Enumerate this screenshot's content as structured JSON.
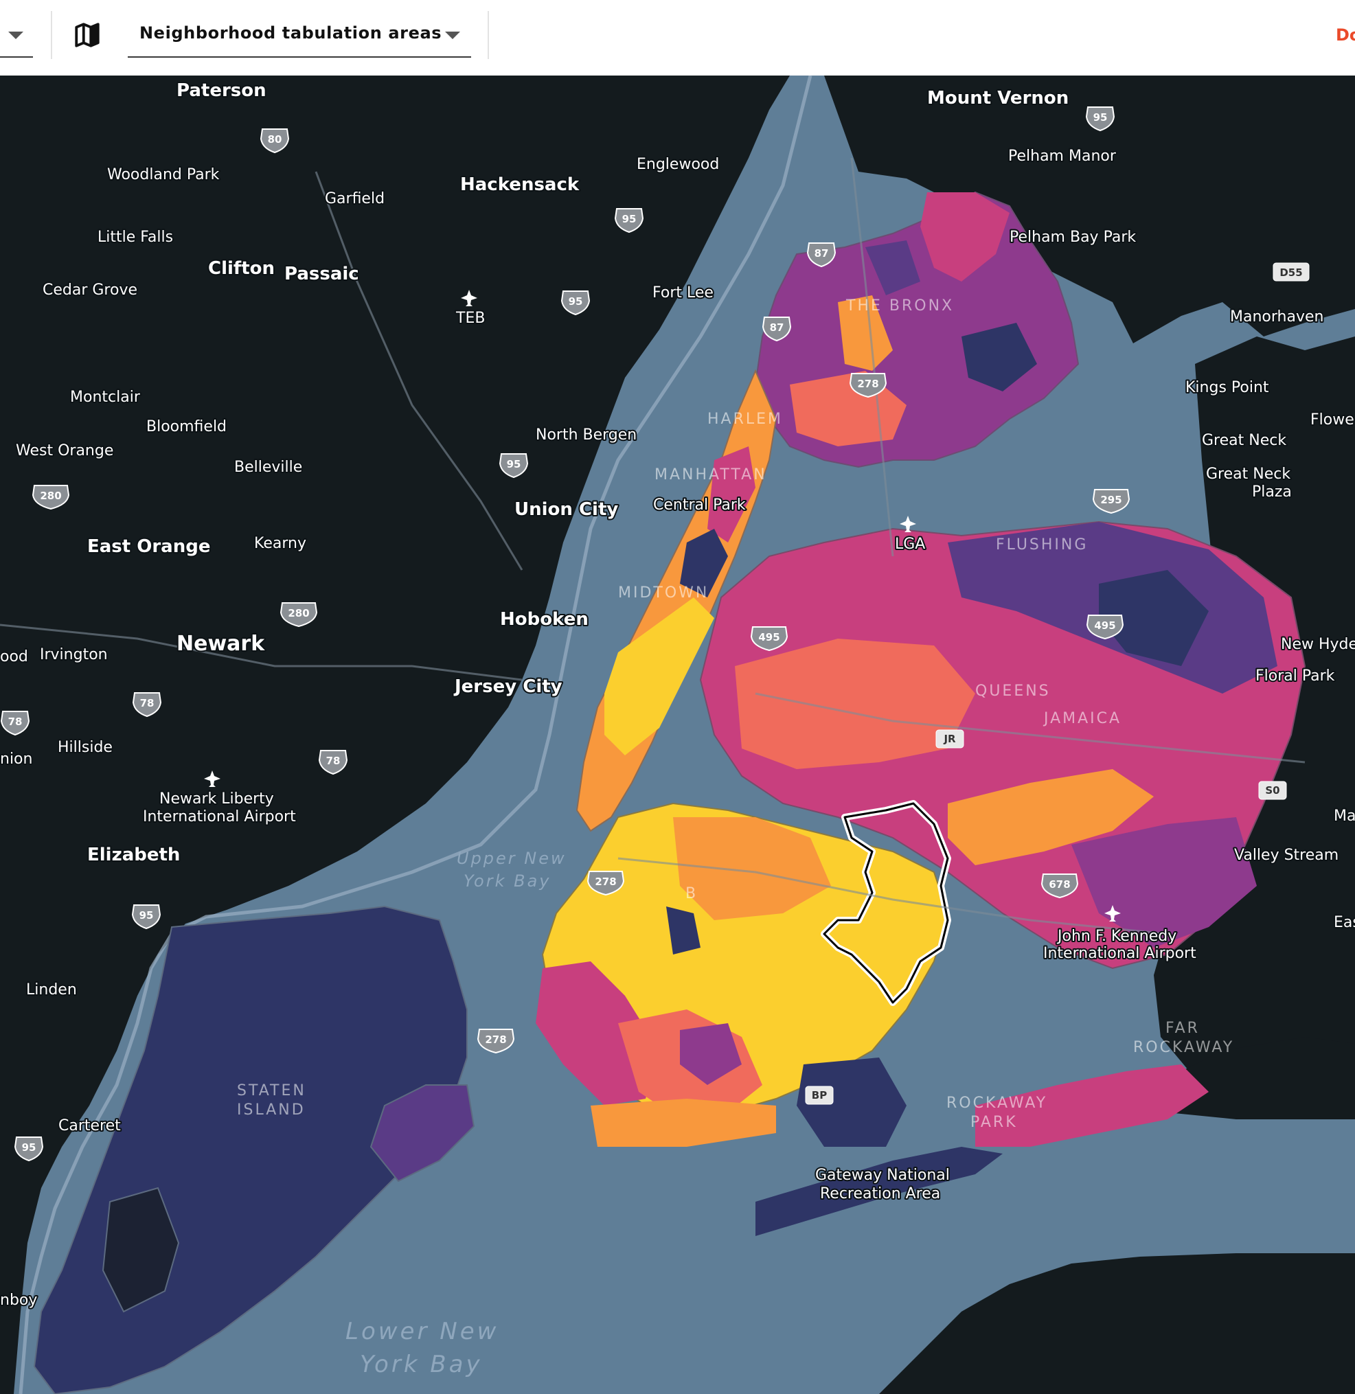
{
  "toolbar": {
    "layer_select_value": "Neighborhood tabulation areas",
    "right_link_text": "Do",
    "map_icon": "map-icon",
    "caret_icon": "caret-down-icon"
  },
  "map": {
    "colors": {
      "water": "#5f7e97",
      "land": "#141b1e",
      "scale_darkest": "#2e3566",
      "scale_purple": "#5a3b86",
      "scale_magenta": "#8e3a8d",
      "scale_pink": "#c83f7e",
      "scale_coral": "#f06b5c",
      "scale_orange": "#f8983d",
      "scale_yellow": "#fbcf2e",
      "selection_outline": "#ffffff"
    },
    "place_labels": {
      "paterson": "Paterson",
      "mount_vernon": "Mount Vernon",
      "woodland_park": "Woodland Park",
      "garfield": "Garfield",
      "hackensack": "Hackensack",
      "englewood": "Englewood",
      "pelham_manor": "Pelham Manor",
      "little_falls": "Little Falls",
      "clifton": "Clifton",
      "passaic": "Passaic",
      "pelham_bay_park": "Pelham Bay Park",
      "cedar_grove": "Cedar Grove",
      "teb": "TEB",
      "fort_lee": "Fort Lee",
      "manorhaven": "Manorhaven",
      "montclair": "Montclair",
      "kings_point": "Kings Point",
      "bloomfield": "Bloomfield",
      "north_bergen": "North Bergen",
      "flowe": "Flowe",
      "west_orange": "West Orange",
      "great_neck": "Great Neck",
      "belleville": "Belleville",
      "great_neck_plaza_1": "Great Neck",
      "great_neck_plaza_2": "Plaza",
      "central_park": "Central Park",
      "union_city": "Union City",
      "east_orange": "East Orange",
      "kearny": "Kearny",
      "lga": "LGA",
      "hoboken": "Hoboken",
      "newark": "Newark",
      "ood": "ood",
      "irvington": "Irvington",
      "new_hyde_park": "New Hyde",
      "floral_park": "Floral Park",
      "jersey_city": "Jersey City",
      "hillside": "Hillside",
      "nion": "nion",
      "newark_airport_1": "Newark Liberty",
      "newark_airport_2": "International Airport",
      "ma": "Ma",
      "elizabeth": "Elizabeth",
      "valley_stream": "Valley Stream",
      "east": "East",
      "jfk_1": "John F. Kennedy",
      "jfk_2": "International Airport",
      "linden": "Linden",
      "carteret": "Carteret",
      "gateway_1": "Gateway National",
      "gateway_2": "Recreation Area",
      "nboy": "nboy"
    },
    "region_labels": {
      "the_bronx": "THE BRONX",
      "manhattan": "MANHATTAN",
      "flushing": "FLUSHING",
      "queens": "QUEENS",
      "jamaica": "JAMAICA",
      "staten_island_1": "STATEN",
      "staten_island_2": "ISLAND",
      "far_rockaway_1": "FAR",
      "far_rockaway_2": "ROCKAWAY",
      "rockaway_park_1": "ROCKAWAY",
      "rockaway_park_2": "PARK",
      "harlem": "HARLEM",
      "midtown": "MIDTOWN",
      "brooklyn": "B"
    },
    "water_labels": {
      "upper_bay_1": "Upper New",
      "upper_bay_2": "York Bay",
      "lower_bay_1": "Lower New",
      "lower_bay_2": "York Bay"
    },
    "shields": {
      "i80": "80",
      "i95_a": "95",
      "i95_b": "95",
      "i95_c": "95",
      "i95_d": "95",
      "i95_e": "95",
      "i95_f": "95",
      "i87_a": "87",
      "i87_b": "87",
      "i278_a": "278",
      "i278_b": "278",
      "i278_c": "278",
      "i280_a": "280",
      "i280_b": "280",
      "i295": "295",
      "i495_a": "495",
      "i495_b": "495",
      "i78_a": "78",
      "i78_b": "78",
      "i78_c": "78",
      "i678": "678"
    },
    "route_boxes": {
      "d55": "D55",
      "jr": "JR",
      "bp": "BP",
      "s0": "S0"
    }
  }
}
